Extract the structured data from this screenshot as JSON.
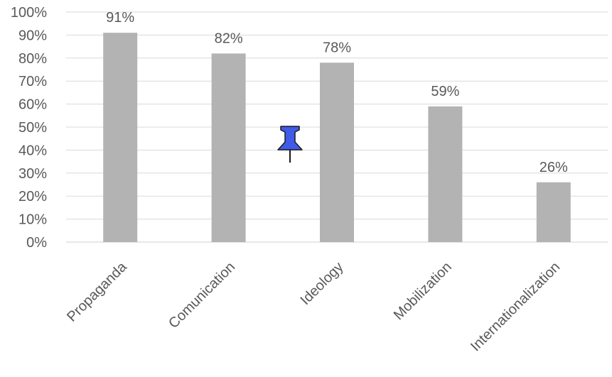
{
  "chart_data": {
    "type": "bar",
    "categories": [
      "Propaganda",
      "Comunication",
      "Ideology",
      "Mobilization",
      "Internationalization"
    ],
    "values": [
      91,
      82,
      78,
      59,
      26
    ],
    "data_labels": [
      "91%",
      "82%",
      "78%",
      "59%",
      "26%"
    ],
    "y_ticks": [
      "0%",
      "10%",
      "20%",
      "30%",
      "40%",
      "50%",
      "60%",
      "70%",
      "80%",
      "90%",
      "100%"
    ],
    "ylim": [
      0,
      100
    ],
    "bar_color": "#b3b3b3",
    "grid": true,
    "title": "",
    "xlabel": "",
    "ylabel": ""
  },
  "annotation": {
    "icon": "pushpin-icon",
    "color": "#3f5be8"
  }
}
